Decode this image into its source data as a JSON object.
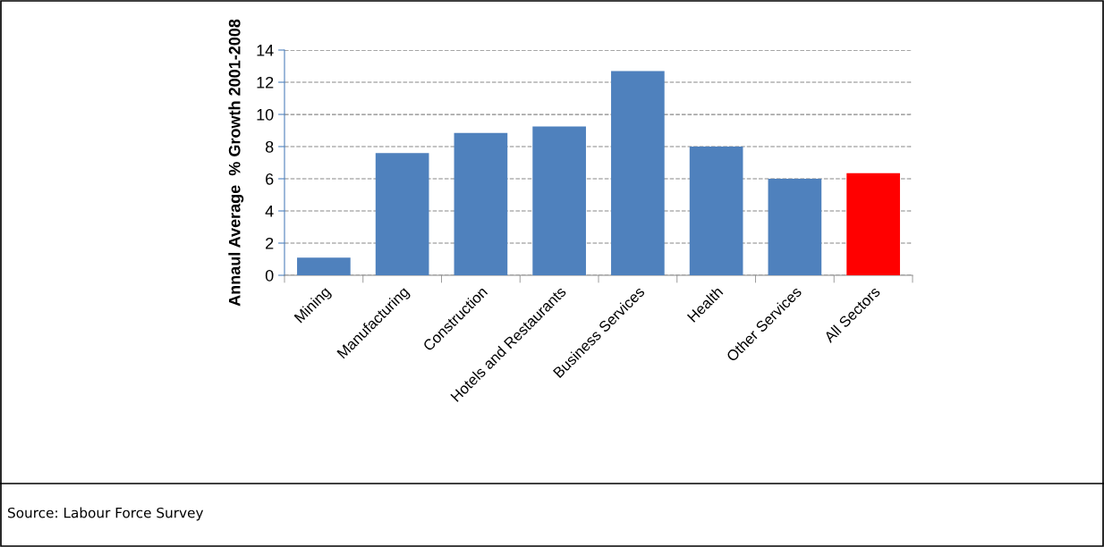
{
  "chart_data": {
    "type": "bar",
    "ylabel": "Annaul Average  % Growth 2001-2008",
    "categories": [
      "Mining",
      "Manufacturing",
      "Construction",
      "Hotels and Restaurants",
      "Business Services",
      "Health",
      "Other Services",
      "All Sectors"
    ],
    "values": [
      1.1,
      7.6,
      8.85,
      9.25,
      12.7,
      8.0,
      6.0,
      6.35
    ],
    "colors": [
      "#4f81bd",
      "#4f81bd",
      "#4f81bd",
      "#4f81bd",
      "#4f81bd",
      "#4f81bd",
      "#4f81bd",
      "#ff0000"
    ],
    "ylim": [
      0,
      14
    ],
    "yticks": [
      0,
      2,
      4,
      6,
      8,
      10,
      12,
      14
    ],
    "grid": "y",
    "annotations": [
      "Source: Labour Force Survey"
    ]
  }
}
